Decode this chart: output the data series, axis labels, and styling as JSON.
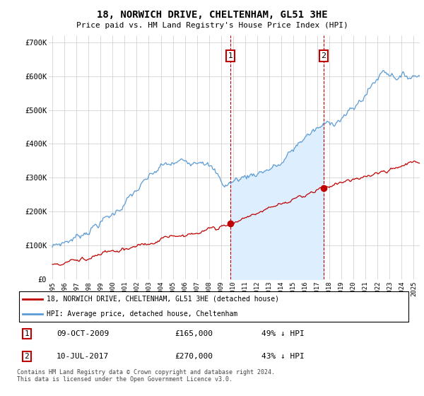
{
  "title": "18, NORWICH DRIVE, CHELTENHAM, GL51 3HE",
  "subtitle": "Price paid vs. HM Land Registry's House Price Index (HPI)",
  "hpi_color": "#5b9bd5",
  "price_color": "#c00000",
  "marker1_x": 2009.78,
  "marker1_y": 165000,
  "marker2_x": 2017.53,
  "marker2_y": 270000,
  "ylim": [
    0,
    720000
  ],
  "xlim_start": 1994.7,
  "xlim_end": 2025.5,
  "yticks": [
    0,
    100000,
    200000,
    300000,
    400000,
    500000,
    600000,
    700000
  ],
  "ytick_labels": [
    "£0",
    "£100K",
    "£200K",
    "£300K",
    "£400K",
    "£500K",
    "£600K",
    "£700K"
  ],
  "xticks": [
    1995,
    1996,
    1997,
    1998,
    1999,
    2000,
    2001,
    2002,
    2003,
    2004,
    2005,
    2006,
    2007,
    2008,
    2009,
    2010,
    2011,
    2012,
    2013,
    2014,
    2015,
    2016,
    2017,
    2018,
    2019,
    2020,
    2021,
    2022,
    2023,
    2024,
    2025
  ],
  "legend_line1": "18, NORWICH DRIVE, CHELTENHAM, GL51 3HE (detached house)",
  "legend_line2": "HPI: Average price, detached house, Cheltenham",
  "table_row1": [
    "1",
    "09-OCT-2009",
    "£165,000",
    "49% ↓ HPI"
  ],
  "table_row2": [
    "2",
    "10-JUL-2017",
    "£270,000",
    "43% ↓ HPI"
  ],
  "footnote": "Contains HM Land Registry data © Crown copyright and database right 2024.\nThis data is licensed under the Open Government Licence v3.0.",
  "shading_color": "#ddeeff",
  "marker_box_color": "#c00000",
  "vline_color": "#c00000",
  "grid_color": "#cccccc"
}
